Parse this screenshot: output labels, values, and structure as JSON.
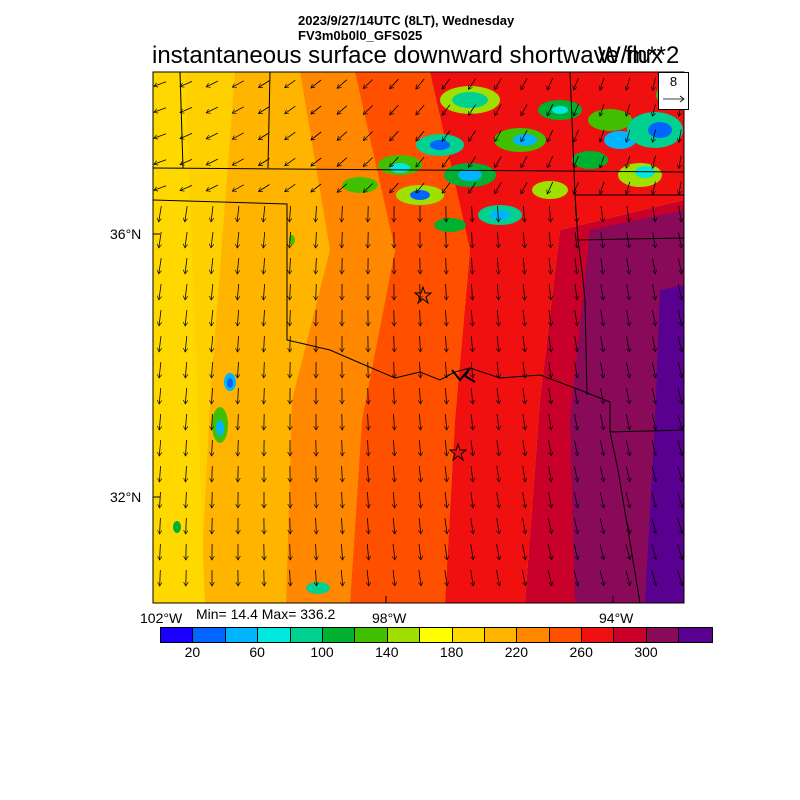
{
  "header": {
    "datetime": "2023/9/27/14UTC (8LT), Wednesday",
    "model": "FV3m0b0l0_GFS025",
    "title": "instantaneous surface downward shortwave flux",
    "units": "W/m**2"
  },
  "map": {
    "lat_labels": [
      "36°N",
      "32°N"
    ],
    "lon_labels": [
      "102°W",
      "98°W",
      "94°W"
    ],
    "stats": "Min= 14.4 Max= 336.2",
    "reference_vector": "8",
    "field_colors": {
      "low_yellow": "#ffd000",
      "amber": "#ffb000",
      "orange": "#ff8800",
      "red_orange": "#ff5000",
      "red": "#f01010",
      "crimson": "#c8002a",
      "magenta": "#8a0a5a",
      "purple": "#5a0090"
    }
  },
  "colorbar": {
    "colors": [
      "#1a00ff",
      "#0066ff",
      "#00b4ff",
      "#00e8e0",
      "#00d090",
      "#00b030",
      "#40c000",
      "#a0e000",
      "#ffff00",
      "#ffd800",
      "#ffb400",
      "#ff8800",
      "#ff5000",
      "#f01010",
      "#c8002a",
      "#8a0a5a",
      "#5a0090"
    ],
    "tick_labels": [
      "20",
      "60",
      "100",
      "140",
      "180",
      "220",
      "260",
      "300"
    ]
  }
}
